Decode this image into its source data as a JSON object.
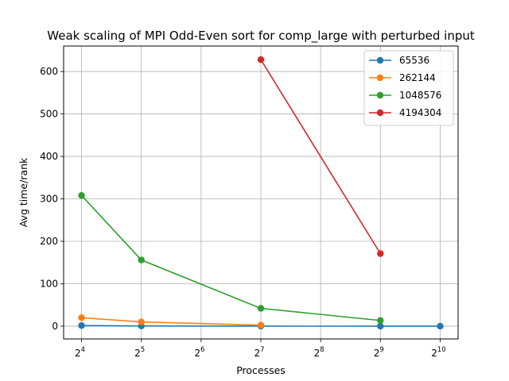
{
  "chart_data": {
    "type": "line",
    "title": "Weak scaling of MPI Odd-Even sort for comp_large with perturbed input",
    "xlabel": "Processes",
    "ylabel": "Avg time/rank",
    "x_scale": "log2",
    "xlim_exponent": [
      3.7,
      10.3
    ],
    "ylim": [
      -30,
      660
    ],
    "grid": true,
    "legend_position": "top-right",
    "x_ticks": [
      {
        "base": "2",
        "exp": "4",
        "value": 16
      },
      {
        "base": "2",
        "exp": "5",
        "value": 32
      },
      {
        "base": "2",
        "exp": "6",
        "value": 64
      },
      {
        "base": "2",
        "exp": "7",
        "value": 128
      },
      {
        "base": "2",
        "exp": "8",
        "value": 256
      },
      {
        "base": "2",
        "exp": "9",
        "value": 512
      },
      {
        "base": "2",
        "exp": "10",
        "value": 1024
      }
    ],
    "y_ticks": [
      0,
      100,
      200,
      300,
      400,
      500,
      600
    ],
    "series": [
      {
        "name": "65536",
        "color": "#1f77b4",
        "x": [
          16,
          32,
          128,
          512,
          1024
        ],
        "y": [
          1.5,
          0.5,
          0.2,
          0.1,
          0.1
        ]
      },
      {
        "name": "262144",
        "color": "#ff7f0e",
        "x": [
          16,
          32,
          128
        ],
        "y": [
          20,
          10,
          2.5
        ]
      },
      {
        "name": "1048576",
        "color": "#2ca02c",
        "x": [
          16,
          32,
          128,
          512
        ],
        "y": [
          308,
          156,
          42,
          13.5
        ]
      },
      {
        "name": "4194304",
        "color": "#d62728",
        "x": [
          128,
          512
        ],
        "y": [
          628,
          171
        ]
      }
    ]
  }
}
